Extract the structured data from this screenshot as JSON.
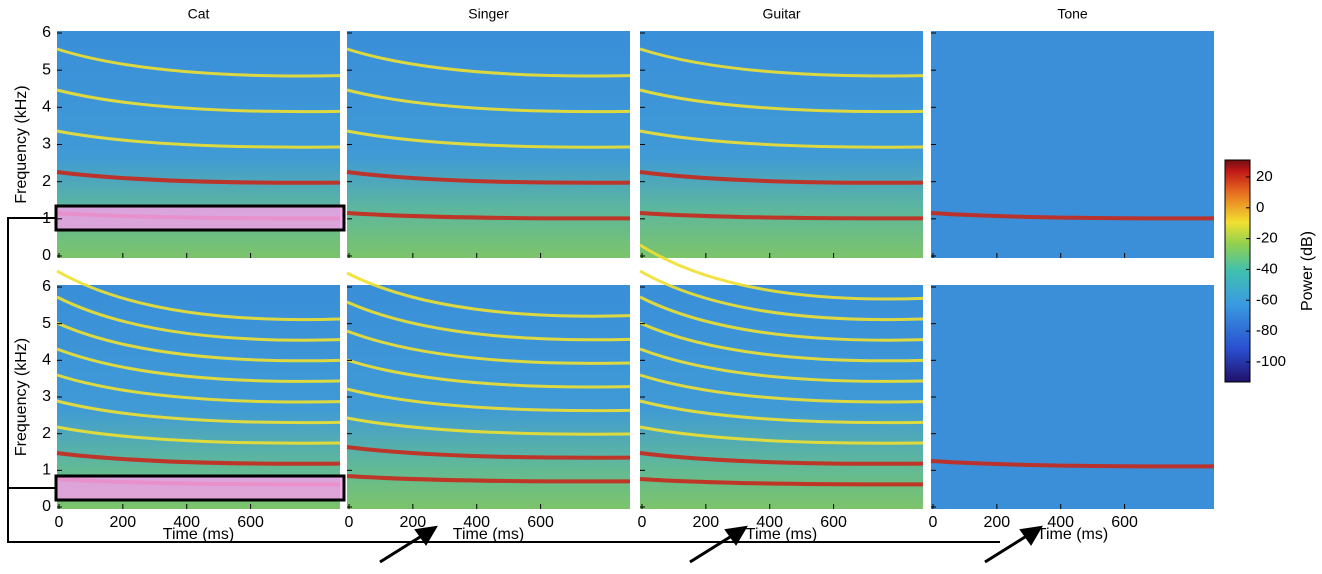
{
  "chart_data": {
    "type": "spectrogram",
    "panel_titles": [
      "Cat",
      "Singer",
      "Guitar",
      "Tone"
    ],
    "xlabel": "Time (ms)",
    "ylabel": "Frequency (kHz)",
    "xlim": [
      0,
      880
    ],
    "xticks": [
      0,
      200,
      400,
      600
    ],
    "ylim": [
      0,
      6
    ],
    "yticks": [
      0,
      1,
      2,
      3,
      4,
      5,
      6
    ],
    "colorbar": {
      "label": "Power (dB)",
      "lim": [
        -113,
        31
      ],
      "ticks": [
        20,
        0,
        -20,
        -40,
        -60,
        -80,
        -100
      ]
    }
  }
}
